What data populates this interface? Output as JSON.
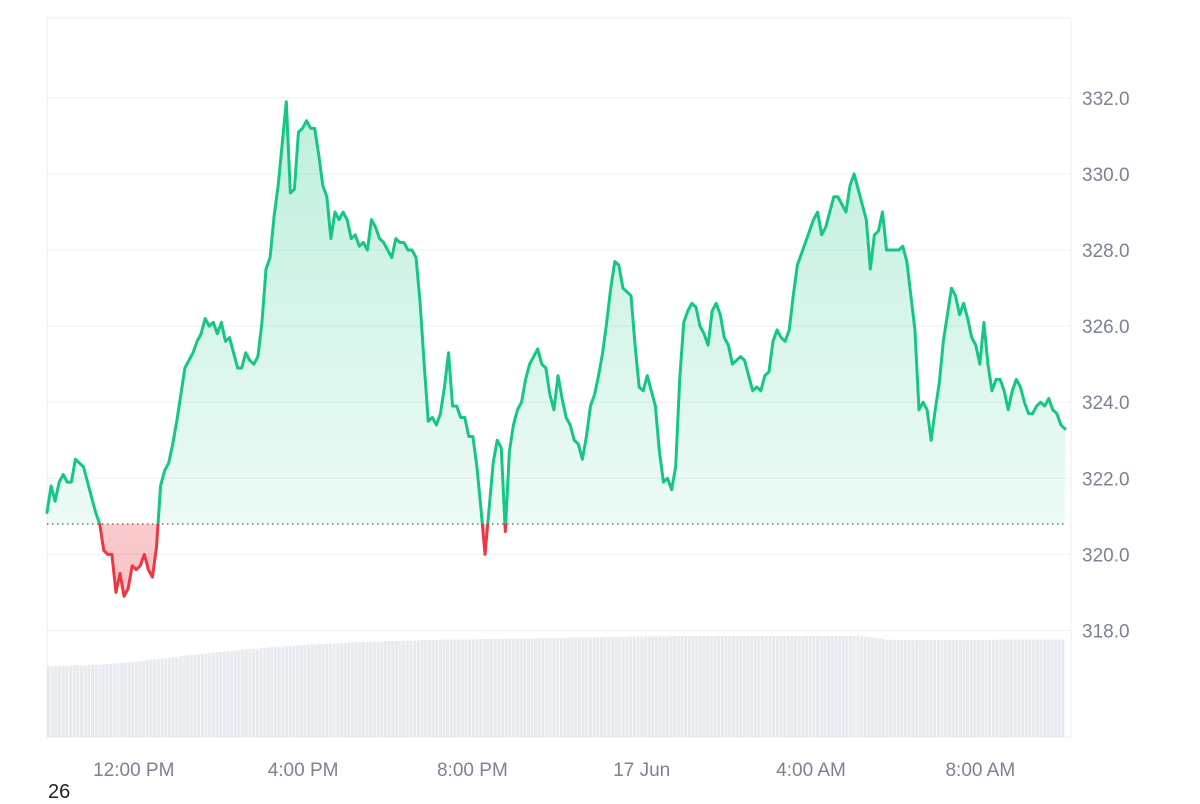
{
  "chart_data": {
    "type": "area",
    "title": "",
    "xlabel": "",
    "ylabel": "",
    "ylim": [
      315.2,
      334.1
    ],
    "baseline": 320.8,
    "colors": {
      "above": "#16c784",
      "below": "#ea3943",
      "grid": "#eef0f3",
      "volume": "#dfe3e8"
    },
    "y_ticks": [
      "318.0",
      "320.0",
      "322.0",
      "324.0",
      "326.0",
      "328.0",
      "330.0",
      "332.0"
    ],
    "x_tick_labels": [
      "12:00 PM",
      "4:00 PM",
      "8:00 PM",
      "17 Jun",
      "4:00 AM",
      "8:00 AM"
    ],
    "x_start_hour": 9.95,
    "x_end_hour": 34.0,
    "x_tick_hours": [
      12,
      16,
      20,
      24,
      28,
      32
    ],
    "series": [
      {
        "values": [
          321.1,
          321.8,
          321.4,
          321.9,
          322.1,
          321.9,
          321.9,
          322.5,
          322.4,
          322.3,
          321.9,
          321.5,
          321.1,
          320.8,
          320.1,
          320.0,
          320.0,
          319.0,
          319.5,
          318.9,
          319.1,
          319.7,
          319.6,
          319.7,
          320.0,
          319.6,
          319.4,
          320.2,
          321.8,
          322.2,
          322.4,
          322.9,
          323.5,
          324.2,
          324.9,
          325.1,
          325.3,
          325.6,
          325.8,
          326.2,
          326.0,
          326.1,
          325.8,
          326.1,
          325.6,
          325.7,
          325.3,
          324.9,
          324.9,
          325.3,
          325.1,
          325.0,
          325.2,
          326.1,
          327.5,
          327.8,
          328.9,
          329.7,
          330.8,
          331.9,
          329.5,
          329.6,
          331.1,
          331.2,
          331.4,
          331.2,
          331.2,
          330.5,
          329.7,
          329.4,
          328.3,
          329.0,
          328.8,
          329.0,
          328.8,
          328.3,
          328.4,
          328.1,
          328.2,
          328.0,
          328.8,
          328.6,
          328.3,
          328.2,
          328.0,
          327.8,
          328.3,
          328.2,
          328.2,
          328.0,
          328.0,
          327.8,
          326.6,
          325.0,
          323.5,
          323.6,
          323.4,
          323.7,
          324.4,
          325.3,
          323.9,
          323.9,
          323.6,
          323.6,
          323.1,
          323.1,
          322.3,
          321.2,
          320.0,
          321.2,
          322.4,
          323.0,
          322.8,
          320.6,
          322.7,
          323.4,
          323.8,
          324.0,
          324.6,
          325.0,
          325.2,
          325.4,
          325.0,
          324.9,
          324.2,
          323.8,
          324.7,
          324.1,
          323.6,
          323.4,
          323.0,
          322.9,
          322.5,
          323.1,
          323.9,
          324.2,
          324.7,
          325.3,
          326.1,
          327.0,
          327.7,
          327.6,
          327.0,
          326.9,
          326.8,
          325.5,
          324.4,
          324.3,
          324.7,
          324.3,
          323.9,
          322.7,
          321.9,
          322.0,
          321.7,
          322.3,
          324.6,
          326.1,
          326.4,
          326.6,
          326.5,
          326.0,
          325.8,
          325.5,
          326.4,
          326.6,
          326.3,
          325.7,
          325.5,
          325.0,
          325.1,
          325.2,
          325.1,
          324.7,
          324.3,
          324.4,
          324.3,
          324.7,
          324.8,
          325.6,
          325.9,
          325.7,
          325.6,
          325.9,
          326.8,
          327.6,
          327.9,
          328.2,
          328.5,
          328.8,
          329.0,
          328.4,
          328.6,
          329.0,
          329.4,
          329.4,
          329.2,
          329.0,
          329.7,
          330.0,
          329.6,
          329.2,
          328.8,
          327.5,
          328.4,
          328.5,
          329.0,
          328.0,
          328.0,
          328.0,
          328.0,
          328.1,
          327.7,
          326.8,
          325.9,
          323.8,
          324.0,
          323.8,
          323.0,
          323.8,
          324.5,
          325.6,
          326.3,
          327.0,
          326.8,
          326.3,
          326.6,
          326.2,
          325.7,
          325.5,
          325.0,
          326.1,
          325.0,
          324.3,
          324.6,
          324.6,
          324.3,
          323.8,
          324.3,
          324.6,
          324.4,
          324.0,
          323.7,
          323.7,
          323.9,
          324.0,
          323.9,
          324.1,
          323.8,
          323.7,
          323.4,
          323.3
        ]
      }
    ],
    "volume": [
      140,
      140,
      140,
      141,
      141,
      141,
      141,
      142,
      142,
      142,
      142,
      142,
      143,
      143,
      143,
      144,
      144,
      145,
      146,
      146,
      147,
      147,
      148,
      148,
      149,
      150,
      151,
      152,
      153,
      154,
      154,
      155,
      156,
      157,
      158,
      159,
      160,
      161,
      162,
      162,
      163,
      164,
      164,
      165,
      166,
      167,
      168,
      168,
      169,
      170,
      170,
      171,
      172,
      173,
      174,
      174,
      175,
      175,
      176,
      176,
      177,
      178,
      178,
      179,
      179,
      180,
      180,
      181,
      181,
      182,
      182,
      183,
      183,
      183,
      184,
      184,
      185,
      185,
      185,
      186,
      186,
      186,
      187,
      187,
      188,
      188,
      188,
      188,
      189,
      189,
      189,
      189,
      190,
      190,
      190,
      190,
      190,
      191,
      191,
      191,
      191,
      191,
      192,
      192,
      192,
      192,
      192,
      192,
      193,
      193,
      193,
      193,
      193,
      193,
      193,
      193,
      193,
      194,
      194,
      194,
      194,
      194,
      194,
      194,
      194,
      195,
      195,
      195,
      195,
      195,
      195,
      195,
      195,
      195,
      196,
      196,
      196,
      196,
      196,
      196,
      196,
      197,
      197,
      197,
      197,
      197,
      197,
      197,
      197,
      197,
      198,
      198,
      198,
      198,
      198,
      198,
      198,
      198,
      198,
      199,
      199,
      199,
      199,
      199,
      199,
      199,
      199,
      199,
      199,
      199,
      200,
      200,
      200,
      200,
      200,
      200,
      200,
      200,
      200,
      200,
      200,
      200,
      200,
      200,
      200,
      200,
      200,
      200,
      200,
      200,
      200,
      200,
      200,
      200,
      200,
      200,
      200,
      200,
      200,
      200,
      200,
      200,
      200,
      200,
      200,
      200,
      200,
      200,
      200,
      200,
      200,
      200,
      200,
      200,
      200,
      200,
      200,
      200,
      200,
      200,
      200,
      200,
      199,
      199,
      198,
      197,
      196,
      195,
      194,
      193,
      193,
      192,
      192,
      192,
      192,
      192,
      192,
      192,
      192,
      192,
      192,
      192,
      192,
      192,
      192,
      192,
      192,
      192,
      192,
      192,
      192,
      192,
      192,
      192,
      192,
      192,
      192,
      192,
      192,
      193,
      193,
      193,
      193,
      193,
      193,
      193,
      193,
      193,
      193,
      193,
      193,
      193,
      193,
      193,
      193,
      193,
      193,
      193
    ],
    "volume_max": 200
  },
  "footer_label": "26"
}
